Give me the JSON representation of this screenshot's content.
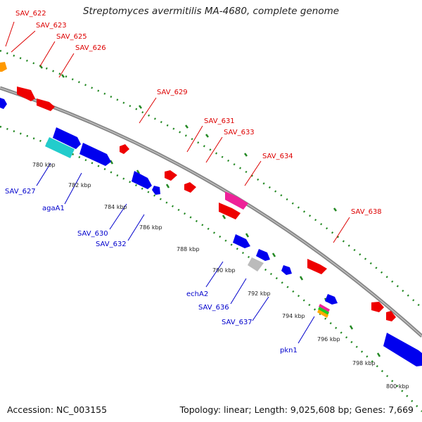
{
  "title": "Streptomyces avermitilis MA-4680, complete genome",
  "accession_text": "Accession: NC_003155",
  "topology_text": "Topology: linear; Length: 9,025,608 bp; Genes: 7,669",
  "colors": {
    "red": "#ff0000",
    "blue": "#0000ee",
    "orange": "#ff9900",
    "cyan": "#22cccc",
    "magenta": "#ee2299",
    "gray": "#bbbbbb",
    "backbone": "#888888",
    "ticks": "#228822",
    "label_red": "#dd0000",
    "label_blue": "#0000cc"
  },
  "scale_labels": [
    "780 kbp",
    "782 kbp",
    "784 kbp",
    "786 kbp",
    "788 kbp",
    "790 kbp",
    "792 kbp",
    "794 kbp",
    "796 kbp",
    "798 kbp",
    "800 kbp"
  ],
  "gene_labels_top": [
    "SAV_622",
    "SAV_623",
    "SAV_625",
    "SAV_626",
    "SAV_629",
    "SAV_631",
    "SAV_633",
    "SAV_634",
    "SAV_638"
  ],
  "gene_labels_bottom": [
    "SAV_627",
    "agaA1",
    "SAV_630",
    "SAV_632",
    "echA2",
    "SAV_636",
    "SAV_637",
    "pkn1"
  ]
}
